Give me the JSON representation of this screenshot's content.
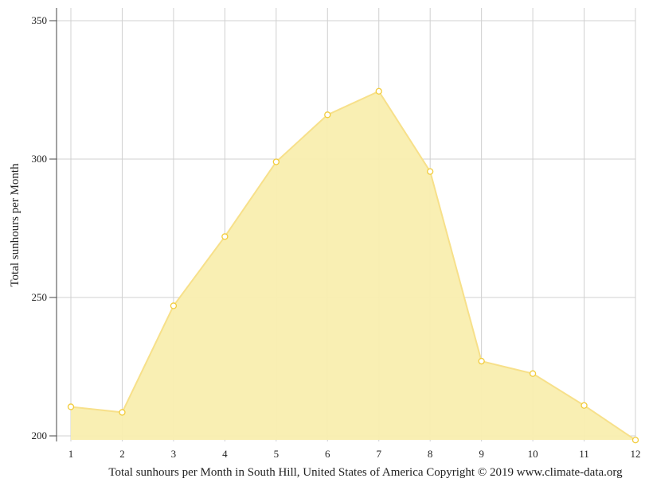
{
  "chart_data": {
    "type": "area",
    "x": [
      1,
      2,
      3,
      4,
      5,
      6,
      7,
      8,
      9,
      10,
      11,
      12
    ],
    "series": [
      {
        "values": [
          210.5,
          208.5,
          247,
          272,
          299,
          316,
          324.5,
          295.5,
          227,
          222.5,
          211,
          198.5
        ]
      }
    ],
    "x_tick_labels": [
      "1",
      "2",
      "3",
      "4",
      "5",
      "6",
      "7",
      "8",
      "9",
      "10",
      "11",
      "12"
    ],
    "y_ticks": [
      200,
      250,
      300,
      350
    ],
    "ylim": [
      200,
      355
    ],
    "xlim": [
      1,
      12
    ],
    "ylabel": "Total sunhours per Month",
    "xlabel": "Total sunhours per Month in South Hill, United States of America Copyright © 2019 www.climate-data.org",
    "grid": true,
    "colors": {
      "fill": "#f9eeaf",
      "line": "#f7e08a",
      "marker_stroke": "#f2cc3c",
      "marker_fill": "#ffffff",
      "grid": "#d0d0d0",
      "axis": "#444444"
    }
  }
}
